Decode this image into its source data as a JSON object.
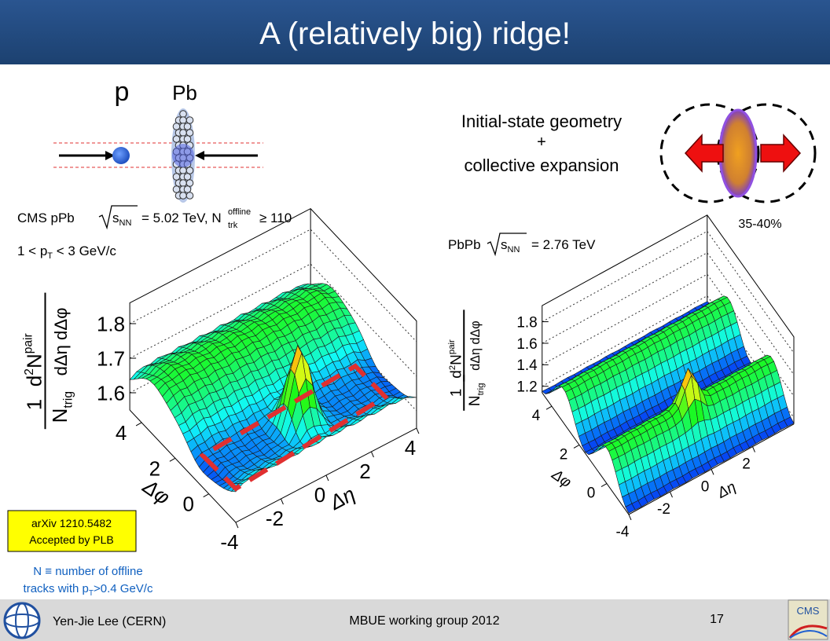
{
  "title": "A (relatively big) ridge!",
  "collision_diagram": {
    "projectile": "p",
    "target": "Pb"
  },
  "geometry_note": {
    "lines": [
      "Initial-state geometry",
      "+",
      "collective expansion"
    ],
    "centrality": "35-40%"
  },
  "left_plot": {
    "header": {
      "experiment": "CMS pPb",
      "sqrt": "s",
      "sqrt_sub": "NN",
      "energy": "= 5.02 TeV, N",
      "n_sub": "trk",
      "n_sup": "offline",
      "cut": "≥ 110"
    },
    "pt_cut": {
      "pre": "1 < p",
      "sub": "T",
      "post": " < 3 GeV/c"
    },
    "z_label": {
      "num1": "1",
      "den1": "N",
      "den1_sub": "trig",
      "num2_pre": "d",
      "num2_sup": "2",
      "num2_n": "N",
      "num2_sup2": "pair",
      "den2": "dΔη dΔφ"
    },
    "z_ticks": [
      1.6,
      1.7,
      1.8
    ],
    "phi_ticks": [
      0,
      2,
      4
    ],
    "phi_label": "Δφ",
    "eta_ticks": [
      -4,
      -2,
      0,
      2,
      4
    ],
    "eta_label": "Δη"
  },
  "right_plot": {
    "header": {
      "experiment": "PbPb",
      "sqrt": "s",
      "sqrt_sub": "NN",
      "energy": "= 2.76 TeV"
    },
    "z_label": {
      "num1": "1",
      "den1": "N",
      "den1_sub": "trig",
      "num2_pre": "d",
      "num2_sup": "2",
      "num2_n": "N",
      "num2_sup2": "pair",
      "den2": "dΔη dΔφ"
    },
    "z_ticks": [
      1.2,
      1.4,
      1.6,
      1.8
    ],
    "phi_ticks": [
      0,
      2,
      4
    ],
    "phi_label": "Δφ",
    "eta_ticks": [
      -4,
      -2,
      0,
      2
    ],
    "eta_label": "Δη"
  },
  "reference": [
    "arXiv 1210.5482",
    "Accepted by PLB"
  ],
  "footnote": {
    "line1": "N ≡ number of offline",
    "line2_pre": "tracks with p",
    "line2_sub": "T",
    "line2_post": ">0.4 GeV/c"
  },
  "footer": {
    "author": "Yen-Jie Lee (CERN)",
    "event": "MBUE working group 2012",
    "page": 17
  }
}
